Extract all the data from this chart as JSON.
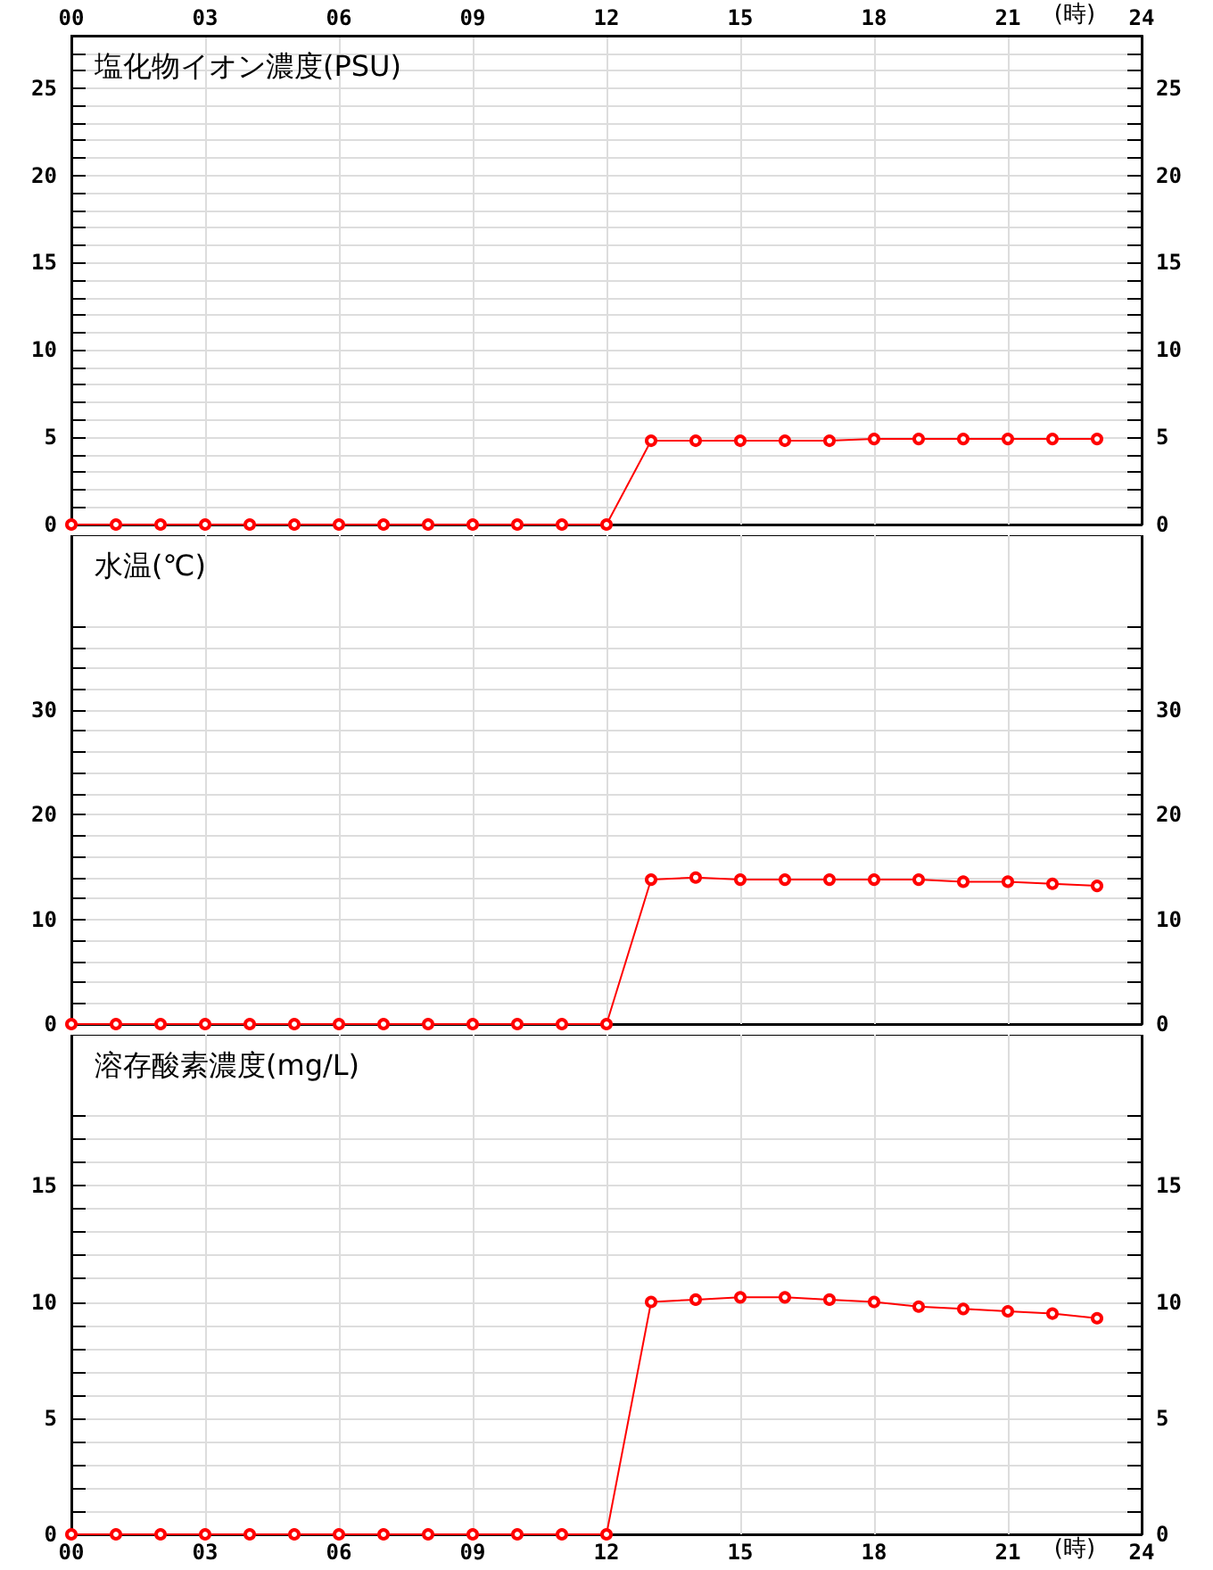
{
  "chart_data": [
    {
      "type": "line",
      "title": "塩化物イオン濃度(PSU)",
      "x": [
        0,
        1,
        2,
        3,
        4,
        5,
        6,
        7,
        8,
        9,
        10,
        11,
        12,
        13,
        14,
        15,
        16,
        17,
        18,
        19,
        20,
        21,
        22,
        23
      ],
      "series": [
        {
          "color": "#ff0000",
          "values": [
            0,
            0,
            0,
            0,
            0,
            0,
            0,
            0,
            0,
            0,
            0,
            0,
            0,
            4.8,
            4.8,
            4.8,
            4.8,
            4.8,
            4.9,
            4.9,
            4.9,
            4.9,
            4.9,
            4.9
          ]
        }
      ],
      "xlim": [
        0,
        24
      ],
      "x2lim": [
        0,
        24
      ],
      "x2label": "(時)",
      "x2ticks": [
        {
          "value": 0,
          "label": "00"
        },
        {
          "value": 3,
          "label": "03"
        },
        {
          "value": 6,
          "label": "06"
        },
        {
          "value": 9,
          "label": "09"
        },
        {
          "value": 12,
          "label": "12"
        },
        {
          "value": 15,
          "label": "15"
        },
        {
          "value": 18,
          "label": "18"
        },
        {
          "value": 21,
          "label": "21"
        },
        {
          "value": 24,
          "label": "24"
        }
      ],
      "ylim": [
        0,
        28
      ],
      "yticks": [
        0,
        {
          "value": 1,
          "label": null
        },
        {
          "value": 2,
          "label": null
        },
        {
          "value": 3,
          "label": null
        },
        {
          "value": 4,
          "label": null
        },
        5,
        {
          "value": 6,
          "label": null
        },
        {
          "value": 7,
          "label": null
        },
        {
          "value": 8,
          "label": null
        },
        {
          "value": 9,
          "label": null
        },
        10,
        {
          "value": 11,
          "label": null
        },
        {
          "value": 12,
          "label": null
        },
        {
          "value": 13,
          "label": null
        },
        {
          "value": 14,
          "label": null
        },
        15,
        {
          "value": 16,
          "label": null
        },
        {
          "value": 17,
          "label": null
        },
        {
          "value": 18,
          "label": null
        },
        {
          "value": 19,
          "label": null
        },
        20,
        {
          "value": 21,
          "label": null
        },
        {
          "value": 22,
          "label": null
        },
        {
          "value": 23,
          "label": null
        },
        {
          "value": 24,
          "label": null
        },
        25,
        {
          "value": 26,
          "label": null
        },
        {
          "value": 27,
          "label": null
        }
      ],
      "y2lim": [
        0,
        28
      ],
      "y2ticks": [
        0,
        {
          "value": 1,
          "label": null
        },
        {
          "value": 2,
          "label": null
        },
        {
          "value": 3,
          "label": null
        },
        {
          "value": 4,
          "label": null
        },
        5,
        {
          "value": 6,
          "label": null
        },
        {
          "value": 7,
          "label": null
        },
        {
          "value": 8,
          "label": null
        },
        {
          "value": 9,
          "label": null
        },
        10,
        {
          "value": 11,
          "label": null
        },
        {
          "value": 12,
          "label": null
        },
        {
          "value": 13,
          "label": null
        },
        {
          "value": 14,
          "label": null
        },
        15,
        {
          "value": 16,
          "label": null
        },
        {
          "value": 17,
          "label": null
        },
        {
          "value": 18,
          "label": null
        },
        {
          "value": 19,
          "label": null
        },
        20,
        {
          "value": 21,
          "label": null
        },
        {
          "value": 22,
          "label": null
        },
        {
          "value": 23,
          "label": null
        },
        {
          "value": 24,
          "label": null
        },
        25,
        {
          "value": 26,
          "label": null
        },
        {
          "value": 27,
          "label": null
        }
      ],
      "grid": true,
      "marker": "circle",
      "line_style": "solid"
    },
    {
      "type": "line",
      "title": "水温(℃)",
      "x": [
        0,
        1,
        2,
        3,
        4,
        5,
        6,
        7,
        8,
        9,
        10,
        11,
        12,
        13,
        14,
        15,
        16,
        17,
        18,
        19,
        20,
        21,
        22,
        23
      ],
      "series": [
        {
          "color": "#ff0000",
          "values": [
            0,
            0,
            0,
            0,
            0,
            0,
            0,
            0,
            0,
            0,
            0,
            0,
            0,
            13.8,
            14.0,
            13.8,
            13.8,
            13.8,
            13.8,
            13.8,
            13.6,
            13.6,
            13.4,
            13.2
          ]
        }
      ],
      "xlim": [
        0,
        24
      ],
      "xticks": [
        {
          "value": 0,
          "label": null
        },
        {
          "value": 3,
          "label": null
        },
        {
          "value": 6,
          "label": null
        },
        {
          "value": 9,
          "label": null
        },
        {
          "value": 12,
          "label": null
        },
        {
          "value": 15,
          "label": null
        },
        {
          "value": 18,
          "label": null
        },
        {
          "value": 21,
          "label": null
        },
        {
          "value": 24,
          "label": null
        }
      ],
      "ylim": [
        0,
        46.7
      ],
      "yticks": [
        0,
        {
          "value": 2,
          "label": null
        },
        {
          "value": 4,
          "label": null
        },
        {
          "value": 6,
          "label": null
        },
        {
          "value": 8,
          "label": null
        },
        10,
        {
          "value": 12,
          "label": null
        },
        {
          "value": 14,
          "label": null
        },
        {
          "value": 16,
          "label": null
        },
        {
          "value": 18,
          "label": null
        },
        20,
        {
          "value": 22,
          "label": null
        },
        {
          "value": 24,
          "label": null
        },
        {
          "value": 26,
          "label": null
        },
        {
          "value": 28,
          "label": null
        },
        30,
        {
          "value": 32,
          "label": null
        },
        {
          "value": 34,
          "label": null
        },
        {
          "value": 36,
          "label": null
        },
        {
          "value": 38,
          "label": null
        }
      ],
      "y2lim": [
        0,
        46.7
      ],
      "y2ticks": [
        0,
        {
          "value": 2,
          "label": null
        },
        {
          "value": 4,
          "label": null
        },
        {
          "value": 6,
          "label": null
        },
        {
          "value": 8,
          "label": null
        },
        10,
        {
          "value": 12,
          "label": null
        },
        {
          "value": 14,
          "label": null
        },
        {
          "value": 16,
          "label": null
        },
        {
          "value": 18,
          "label": null
        },
        20,
        {
          "value": 22,
          "label": null
        },
        {
          "value": 24,
          "label": null
        },
        {
          "value": 26,
          "label": null
        },
        {
          "value": 28,
          "label": null
        },
        30,
        {
          "value": 32,
          "label": null
        },
        {
          "value": 34,
          "label": null
        },
        {
          "value": 36,
          "label": null
        },
        {
          "value": 38,
          "label": null
        }
      ],
      "tick_labels": "y",
      "grid": true,
      "marker": "circle",
      "line_style": "solid"
    },
    {
      "type": "line",
      "title": "溶存酸素濃度(mg/L)",
      "x": [
        0,
        1,
        2,
        3,
        4,
        5,
        6,
        7,
        8,
        9,
        10,
        11,
        12,
        13,
        14,
        15,
        16,
        17,
        18,
        19,
        20,
        21,
        22,
        23
      ],
      "series": [
        {
          "color": "#ff0000",
          "values": [
            0,
            0,
            0,
            0,
            0,
            0,
            0,
            0,
            0,
            0,
            0,
            0,
            0,
            10.0,
            10.1,
            10.2,
            10.2,
            10.1,
            10.0,
            9.8,
            9.7,
            9.6,
            9.5,
            9.3
          ]
        }
      ],
      "xlim": [
        0,
        24
      ],
      "xlabel": "(時)",
      "xticks": [
        {
          "value": 0,
          "label": "00"
        },
        {
          "value": 3,
          "label": "03"
        },
        {
          "value": 6,
          "label": "06"
        },
        {
          "value": 9,
          "label": "09"
        },
        {
          "value": 12,
          "label": "12"
        },
        {
          "value": 15,
          "label": "15"
        },
        {
          "value": 18,
          "label": "18"
        },
        {
          "value": 21,
          "label": "21"
        },
        {
          "value": 24,
          "label": "24"
        }
      ],
      "ylim": [
        0,
        21.5
      ],
      "yticks": [
        0,
        {
          "value": 1,
          "label": null
        },
        {
          "value": 2,
          "label": null
        },
        {
          "value": 3,
          "label": null
        },
        {
          "value": 4,
          "label": null
        },
        5,
        {
          "value": 6,
          "label": null
        },
        {
          "value": 7,
          "label": null
        },
        {
          "value": 8,
          "label": null
        },
        {
          "value": 9,
          "label": null
        },
        10,
        {
          "value": 11,
          "label": null
        },
        {
          "value": 12,
          "label": null
        },
        {
          "value": 13,
          "label": null
        },
        {
          "value": 14,
          "label": null
        },
        15,
        {
          "value": 16,
          "label": null
        },
        {
          "value": 17,
          "label": null
        },
        {
          "value": 18,
          "label": null
        }
      ],
      "y2lim": [
        0,
        21.5
      ],
      "y2ticks": [
        0,
        {
          "value": 1,
          "label": null
        },
        {
          "value": 2,
          "label": null
        },
        {
          "value": 3,
          "label": null
        },
        {
          "value": 4,
          "label": null
        },
        5,
        {
          "value": 6,
          "label": null
        },
        {
          "value": 7,
          "label": null
        },
        {
          "value": 8,
          "label": null
        },
        {
          "value": 9,
          "label": null
        },
        10,
        {
          "value": 11,
          "label": null
        },
        {
          "value": 12,
          "label": null
        },
        {
          "value": 13,
          "label": null
        },
        {
          "value": 14,
          "label": null
        },
        15,
        {
          "value": 16,
          "label": null
        },
        {
          "value": 17,
          "label": null
        },
        {
          "value": 18,
          "label": null
        }
      ],
      "grid": true,
      "marker": "circle",
      "line_style": "solid"
    }
  ]
}
